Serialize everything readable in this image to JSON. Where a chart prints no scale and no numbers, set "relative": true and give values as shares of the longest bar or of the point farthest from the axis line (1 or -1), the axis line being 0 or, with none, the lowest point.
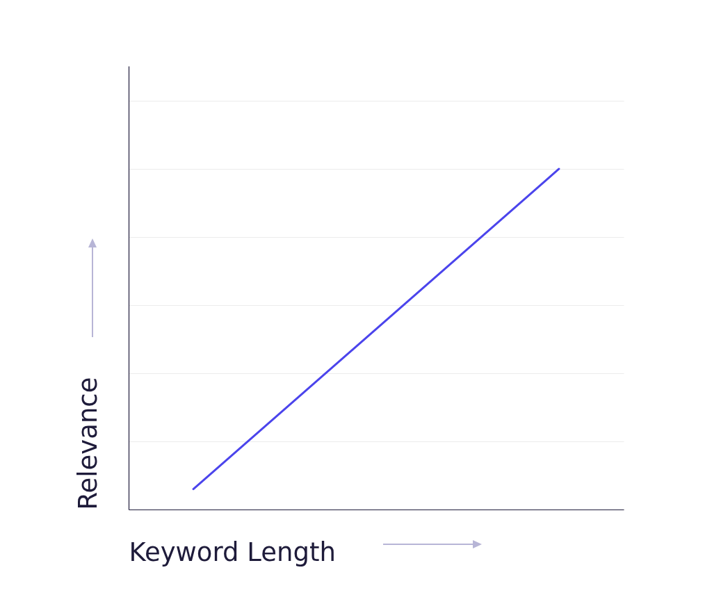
{
  "chart_data": {
    "type": "line",
    "xlabel": "Keyword Length",
    "ylabel": "Relevance",
    "categories": [
      null,
      null
    ],
    "relative": true,
    "grid": "y",
    "series": [
      {
        "color": "#4b44ec",
        "values": [
          0.06,
          1
        ]
      }
    ]
  }
}
